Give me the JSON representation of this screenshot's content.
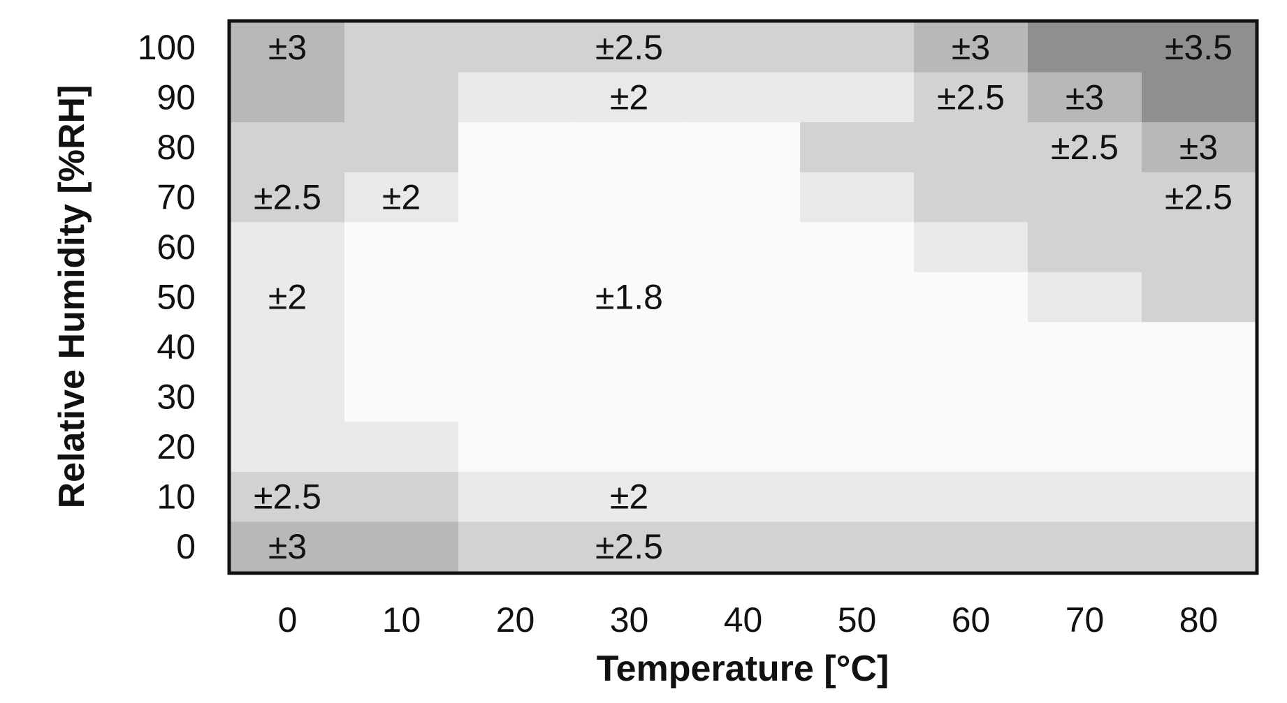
{
  "chart_data": {
    "type": "heatmap",
    "title": "",
    "xlabel": "Temperature [°C]",
    "ylabel": "Relative Humidity [%RH]",
    "x": [
      0,
      10,
      20,
      30,
      40,
      50,
      60,
      70,
      80
    ],
    "y": [
      100,
      90,
      80,
      70,
      60,
      50,
      40,
      30,
      20,
      10,
      0
    ],
    "xlim": [
      0,
      80
    ],
    "ylim": [
      0,
      100
    ],
    "grid": false,
    "legend": "none",
    "values": [
      [
        3,
        2.5,
        2.5,
        2.5,
        2.5,
        2.5,
        3,
        3.5,
        3.5
      ],
      [
        3,
        2.5,
        2,
        2,
        2,
        2,
        2.5,
        3,
        3.5
      ],
      [
        2.5,
        2.5,
        1.8,
        1.8,
        1.8,
        2.5,
        2.5,
        2.5,
        3
      ],
      [
        2.5,
        2,
        1.8,
        1.8,
        1.8,
        2,
        2.5,
        2.5,
        2.5
      ],
      [
        2,
        1.8,
        1.8,
        1.8,
        1.8,
        1.8,
        2,
        2.5,
        2.5
      ],
      [
        2,
        1.8,
        1.8,
        1.8,
        1.8,
        1.8,
        1.8,
        2,
        2.5
      ],
      [
        2,
        1.8,
        1.8,
        1.8,
        1.8,
        1.8,
        1.8,
        1.8,
        1.8
      ],
      [
        2,
        1.8,
        1.8,
        1.8,
        1.8,
        1.8,
        1.8,
        1.8,
        1.8
      ],
      [
        2,
        2,
        1.8,
        1.8,
        1.8,
        1.8,
        1.8,
        1.8,
        1.8
      ],
      [
        2.5,
        2.5,
        2,
        2,
        2,
        2,
        2,
        2,
        2
      ],
      [
        3,
        3,
        2.5,
        2.5,
        2.5,
        2.5,
        2.5,
        2.5,
        2.5
      ]
    ],
    "cell_labels": [
      {
        "text": "±3",
        "x": 0,
        "y": 100
      },
      {
        "text": "±2.5",
        "x": 30,
        "y": 100
      },
      {
        "text": "±3",
        "x": 60,
        "y": 100
      },
      {
        "text": "±3.5",
        "x": 80,
        "y": 100
      },
      {
        "text": "±2",
        "x": 30,
        "y": 90
      },
      {
        "text": "±2.5",
        "x": 60,
        "y": 90
      },
      {
        "text": "±3",
        "x": 70,
        "y": 90
      },
      {
        "text": "±2.5",
        "x": 70,
        "y": 80
      },
      {
        "text": "±3",
        "x": 80,
        "y": 80
      },
      {
        "text": "±2.5",
        "x": 0,
        "y": 70
      },
      {
        "text": "±2",
        "x": 10,
        "y": 70
      },
      {
        "text": "±2.5",
        "x": 80,
        "y": 70
      },
      {
        "text": "±2",
        "x": 0,
        "y": 50
      },
      {
        "text": "±1.8",
        "x": 30,
        "y": 50
      },
      {
        "text": "±2.5",
        "x": 0,
        "y": 10
      },
      {
        "text": "±2",
        "x": 30,
        "y": 10
      },
      {
        "text": "±3",
        "x": 0,
        "y": 0
      },
      {
        "text": "±2.5",
        "x": 30,
        "y": 0
      }
    ],
    "value_colors": {
      "1.8": "#fafafa",
      "2": "#e9e9e9",
      "2.5": "#d2d2d2",
      "3": "#b8b8b8",
      "3.5": "#8f8f8f"
    }
  }
}
